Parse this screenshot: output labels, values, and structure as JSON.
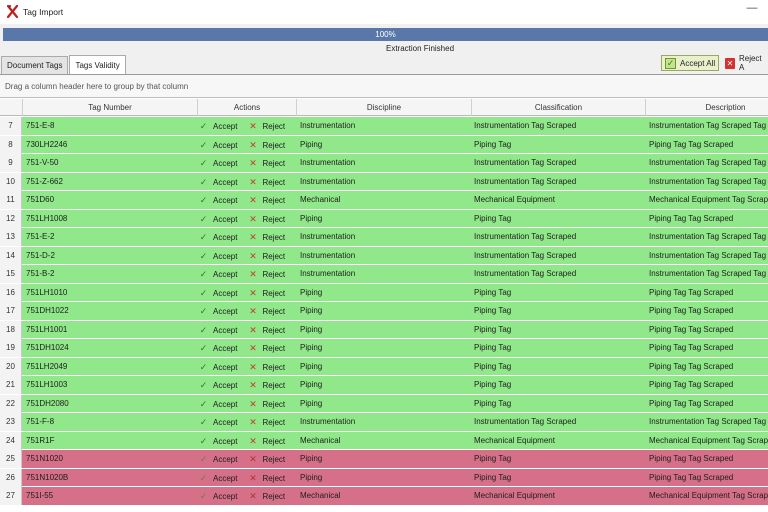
{
  "window": {
    "title": "Tag Import",
    "minimize_glyph": "—",
    "app_icon": "x-tool-icon"
  },
  "progress": {
    "label": "100%",
    "value": 1.0
  },
  "status_text": "Extraction Finished",
  "tabs": [
    {
      "label": "Document Tags",
      "active": false
    },
    {
      "label": "Tags Validity",
      "active": true
    }
  ],
  "toolbar": {
    "accept_all_label": "Accept All",
    "reject_all_label": "Reject A"
  },
  "grid": {
    "group_panel_text": "Drag a column header here to group by that column",
    "columns": {
      "tag": "Tag Number",
      "actions": "Actions",
      "discipline": "Discipline",
      "classification": "Classification",
      "description": "Description"
    },
    "accept_label": "Accept",
    "reject_label": "Reject",
    "status_colors": {
      "ok": "#90e88a",
      "bad": "#d57088"
    },
    "rows": [
      {
        "num": "7",
        "tag": "751-E-8",
        "discipline": "Instrumentation",
        "classification": "Instrumentation Tag Scraped",
        "description": "Instrumentation Tag Scraped Tag",
        "status": "ok"
      },
      {
        "num": "8",
        "tag": "730LH2246",
        "discipline": "Piping",
        "classification": "Piping Tag",
        "description": "Piping Tag Tag Scraped",
        "status": "ok"
      },
      {
        "num": "9",
        "tag": "751-V-50",
        "discipline": "Instrumentation",
        "classification": "Instrumentation Tag Scraped",
        "description": "Instrumentation Tag Scraped Tag",
        "status": "ok"
      },
      {
        "num": "10",
        "tag": "751-Z-662",
        "discipline": "Instrumentation",
        "classification": "Instrumentation Tag Scraped",
        "description": "Instrumentation Tag Scraped Tag",
        "status": "ok"
      },
      {
        "num": "11",
        "tag": "751D60",
        "discipline": "Mechanical",
        "classification": "Mechanical Equipment",
        "description": "Mechanical Equipment Tag Scrape",
        "status": "ok"
      },
      {
        "num": "12",
        "tag": "751LH1008",
        "discipline": "Piping",
        "classification": "Piping Tag",
        "description": "Piping Tag Tag Scraped",
        "status": "ok"
      },
      {
        "num": "13",
        "tag": "751-E-2",
        "discipline": "Instrumentation",
        "classification": "Instrumentation Tag Scraped",
        "description": "Instrumentation Tag Scraped Tag",
        "status": "ok"
      },
      {
        "num": "14",
        "tag": "751-D-2",
        "discipline": "Instrumentation",
        "classification": "Instrumentation Tag Scraped",
        "description": "Instrumentation Tag Scraped Tag",
        "status": "ok"
      },
      {
        "num": "15",
        "tag": "751-B-2",
        "discipline": "Instrumentation",
        "classification": "Instrumentation Tag Scraped",
        "description": "Instrumentation Tag Scraped Tag",
        "status": "ok"
      },
      {
        "num": "16",
        "tag": "751LH1010",
        "discipline": "Piping",
        "classification": "Piping Tag",
        "description": "Piping Tag Tag Scraped",
        "status": "ok"
      },
      {
        "num": "17",
        "tag": "751DH1022",
        "discipline": "Piping",
        "classification": "Piping Tag",
        "description": "Piping Tag Tag Scraped",
        "status": "ok"
      },
      {
        "num": "18",
        "tag": "751LH1001",
        "discipline": "Piping",
        "classification": "Piping Tag",
        "description": "Piping Tag Tag Scraped",
        "status": "ok"
      },
      {
        "num": "19",
        "tag": "751DH1024",
        "discipline": "Piping",
        "classification": "Piping Tag",
        "description": "Piping Tag Tag Scraped",
        "status": "ok"
      },
      {
        "num": "20",
        "tag": "751LH2049",
        "discipline": "Piping",
        "classification": "Piping Tag",
        "description": "Piping Tag Tag Scraped",
        "status": "ok"
      },
      {
        "num": "21",
        "tag": "751LH1003",
        "discipline": "Piping",
        "classification": "Piping Tag",
        "description": "Piping Tag Tag Scraped",
        "status": "ok"
      },
      {
        "num": "22",
        "tag": "751DH2080",
        "discipline": "Piping",
        "classification": "Piping Tag",
        "description": "Piping Tag Tag Scraped",
        "status": "ok"
      },
      {
        "num": "23",
        "tag": "751-F-8",
        "discipline": "Instrumentation",
        "classification": "Instrumentation Tag Scraped",
        "description": "Instrumentation Tag Scraped Tag",
        "status": "ok"
      },
      {
        "num": "24",
        "tag": "751R1F",
        "discipline": "Mechanical",
        "classification": "Mechanical Equipment",
        "description": "Mechanical Equipment Tag Scrape",
        "status": "ok"
      },
      {
        "num": "25",
        "tag": "751N1020",
        "discipline": "Piping",
        "classification": "Piping Tag",
        "description": "Piping Tag Tag Scraped",
        "status": "bad"
      },
      {
        "num": "26",
        "tag": "751N1020B",
        "discipline": "Piping",
        "classification": "Piping Tag",
        "description": "Piping Tag Tag Scraped",
        "status": "bad"
      },
      {
        "num": "27",
        "tag": "751I-55",
        "discipline": "Mechanical",
        "classification": "Mechanical Equipment",
        "description": "Mechanical Equipment Tag Scrape",
        "status": "bad"
      }
    ]
  }
}
